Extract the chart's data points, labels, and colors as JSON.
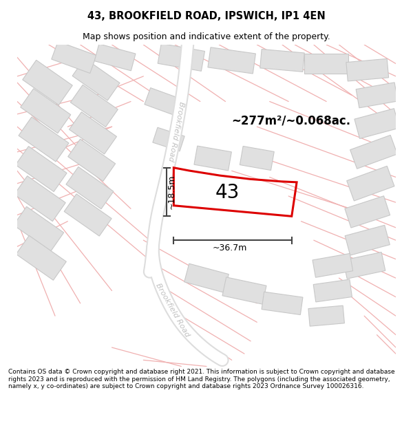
{
  "title": "43, BROOKFIELD ROAD, IPSWICH, IP1 4EN",
  "subtitle": "Map shows position and indicative extent of the property.",
  "footer": "Contains OS data © Crown copyright and database right 2021. This information is subject to Crown copyright and database rights 2023 and is reproduced with the permission of HM Land Registry. The polygons (including the associated geometry, namely x, y co-ordinates) are subject to Crown copyright and database rights 2023 Ordnance Survey 100026316.",
  "area_text": "~277m²/~0.068ac.",
  "property_number": "43",
  "dim_width": "~36.7m",
  "dim_height": "~18.5m",
  "road_label": "Brookfield Road",
  "bg_color": "#ffffff",
  "map_bg": "#f9f7f7",
  "title_color": "#000000",
  "footer_color": "#000000",
  "road_fill": "#ffffff",
  "road_edge": "#dddddd",
  "building_fc": "#e0e0e0",
  "building_ec": "#c8c8c8",
  "property_outline_color": "#dd0000",
  "dim_line_color": "#444444",
  "road_line_color": "#f0b0b0",
  "road_label_color": "#c0c0c0",
  "footer_fontsize": 6.5,
  "title_fontsize": 10.5,
  "subtitle_fontsize": 9
}
